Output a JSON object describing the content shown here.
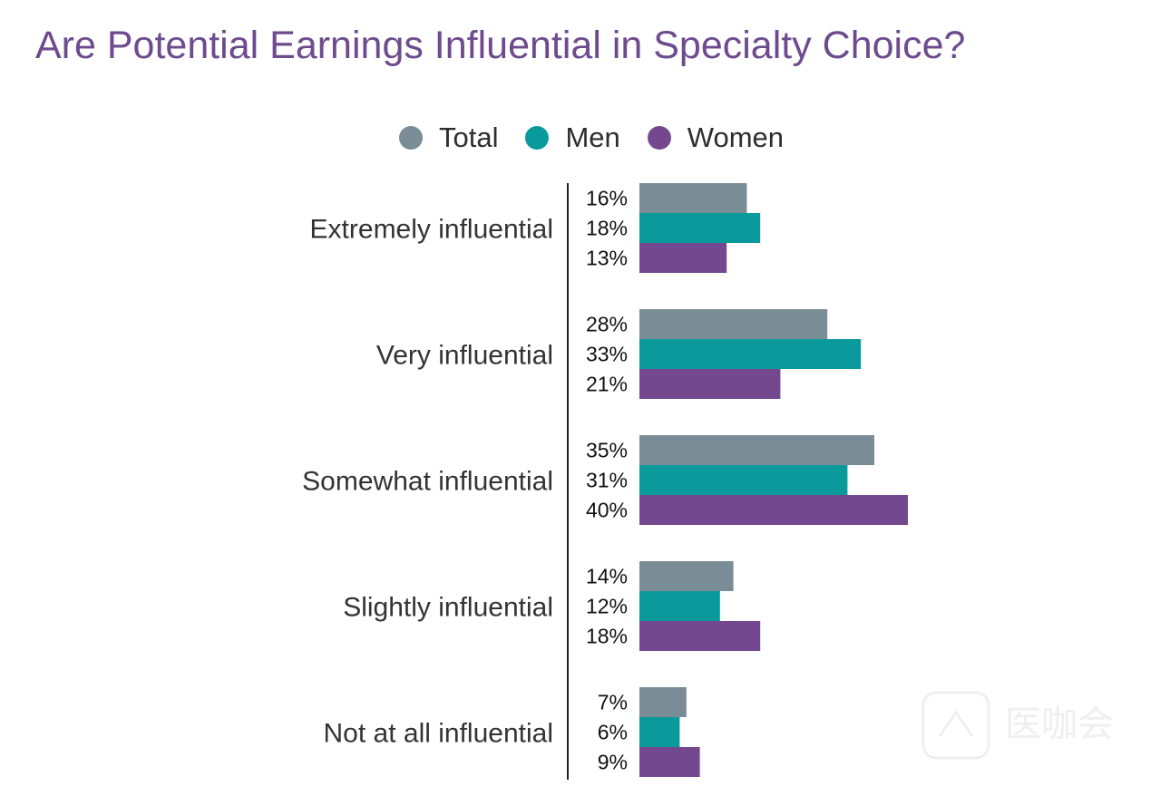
{
  "title": "Are Potential Earnings Influential in Specialty Choice?",
  "chart_data": {
    "type": "bar",
    "orientation": "horizontal",
    "title": "Are Potential Earnings Influential in Specialty Choice?",
    "categories": [
      "Extremely influential",
      "Very influential",
      "Somewhat influential",
      "Slightly influential",
      "Not at all influential"
    ],
    "series": [
      {
        "name": "Total",
        "color": "#7a8c96",
        "values": [
          16,
          28,
          35,
          14,
          7
        ],
        "labels": [
          "16%",
          "28%",
          "35%",
          "14%",
          "7%"
        ]
      },
      {
        "name": "Men",
        "color": "#0a9a9c",
        "values": [
          18,
          33,
          31,
          12,
          6
        ],
        "labels": [
          "18%",
          "33%",
          "31%",
          "12%",
          "6%"
        ]
      },
      {
        "name": "Women",
        "color": "#74488f",
        "values": [
          13,
          21,
          40,
          18,
          9
        ],
        "labels": [
          "13%",
          "21%",
          "40%",
          "18%",
          "9%"
        ]
      }
    ],
    "unit": "%",
    "legend_position": "top",
    "grid": false
  },
  "watermark": {
    "text": "医咖会"
  }
}
